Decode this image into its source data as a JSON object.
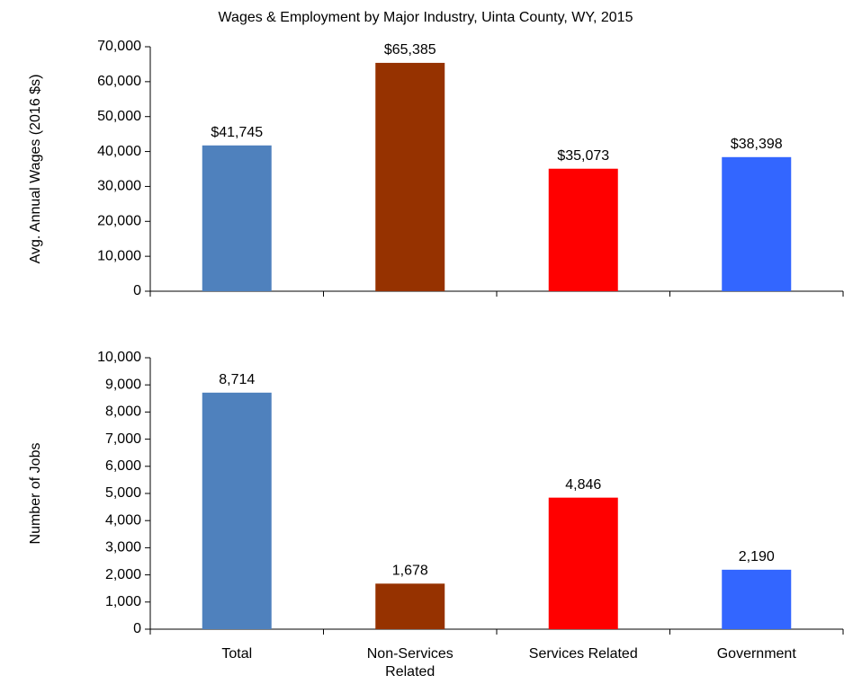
{
  "chart_data": [
    {
      "type": "bar",
      "title": "Wages & Employment by Major Industry, Uinta County, WY, 2015",
      "y_label": "Avg. Annual Wages (2016 $s)",
      "categories": [
        null,
        null,
        null,
        null
      ],
      "values": [
        41745,
        65385,
        35073,
        38398
      ],
      "value_labels": [
        "$41,745",
        "$65,385",
        "$35,073",
        "$38,398"
      ],
      "colors": [
        "#4f81bd",
        "#963200",
        "#ff0000",
        "#3366ff"
      ],
      "ylim": [
        0,
        70000
      ],
      "yticks": [
        0,
        {
          "value": 10000,
          "label": "10,000"
        },
        {
          "value": 20000,
          "label": "20,000"
        },
        {
          "value": 30000,
          "label": "30,000"
        },
        {
          "value": 40000,
          "label": "40,000"
        },
        {
          "value": 50000,
          "label": "50,000"
        },
        {
          "value": 60000,
          "label": "60,000"
        },
        {
          "value": 70000,
          "label": "70,000"
        }
      ],
      "grid": false
    },
    {
      "type": "bar",
      "y_label": "Number of Jobs",
      "categories": [
        "Total",
        "Non-Services Related",
        "Services Related",
        "Government"
      ],
      "values": [
        8714,
        1678,
        4846,
        2190
      ],
      "value_labels": [
        "8,714",
        "1,678",
        "4,846",
        "2,190"
      ],
      "colors": [
        "#4f81bd",
        "#963200",
        "#ff0000",
        "#3366ff"
      ],
      "ylim": [
        0,
        10000
      ],
      "yticks": [
        0,
        {
          "value": 1000,
          "label": "1,000"
        },
        {
          "value": 2000,
          "label": "2,000"
        },
        {
          "value": 3000,
          "label": "3,000"
        },
        {
          "value": 4000,
          "label": "4,000"
        },
        {
          "value": 5000,
          "label": "5,000"
        },
        {
          "value": 6000,
          "label": "6,000"
        },
        {
          "value": 7000,
          "label": "7,000"
        },
        {
          "value": 8000,
          "label": "8,000"
        },
        {
          "value": 9000,
          "label": "9,000"
        },
        {
          "value": 10000,
          "label": "10,000"
        }
      ],
      "grid": false
    }
  ]
}
